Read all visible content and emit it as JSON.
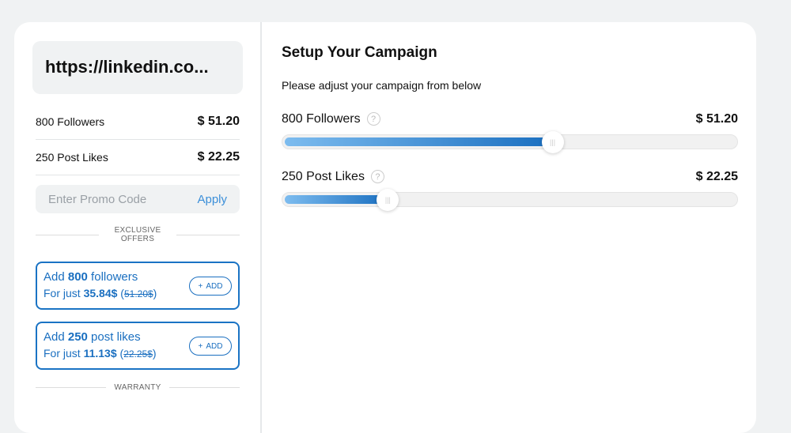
{
  "order": {
    "url": "https://linkedin.co...",
    "items": [
      {
        "label": "800 Followers",
        "price": "$ 51.20"
      },
      {
        "label": "250 Post Likes",
        "price": "$ 22.25"
      }
    ],
    "promo": {
      "placeholder": "Enter Promo Code",
      "apply": "Apply"
    },
    "exclusive_line1": "EXCLUSIVE",
    "exclusive_line2": "OFFERS",
    "offers": [
      {
        "pre": "Add ",
        "qty": "800",
        "post": " followers",
        "just": "For just ",
        "price": "35.84$",
        "old": "51.20$",
        "add": "ADD"
      },
      {
        "pre": "Add ",
        "qty": "250",
        "post": " post likes",
        "just": "For just ",
        "price": "11.13$",
        "old": "22.25$",
        "add": "ADD"
      }
    ],
    "warranty": "WARRANTY"
  },
  "campaign": {
    "title": "Setup Your Campaign",
    "subtitle": "Please adjust your campaign from below",
    "sliders": [
      {
        "label": "800 Followers",
        "price": "$ 51.20",
        "level": 0.594
      },
      {
        "label": "250 Post Likes",
        "price": "$ 22.25",
        "level": 0.232
      }
    ]
  },
  "colors": {
    "accent": "#1a6fc0",
    "background": "#f0f2f3"
  }
}
